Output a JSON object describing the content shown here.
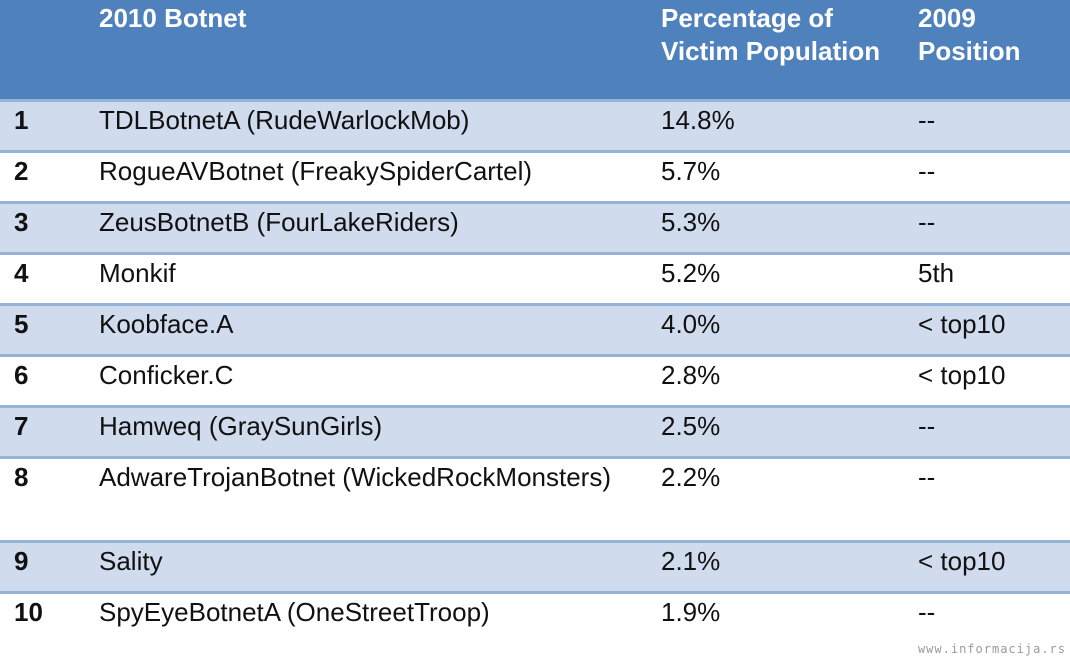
{
  "table": {
    "headers": [
      "",
      "2010 Botnet",
      "Percentage of Victim Population",
      "2009 Position"
    ],
    "rows": [
      {
        "rank": "1",
        "botnet": "TDLBotnetA (RudeWarlockMob)",
        "percentage": "14.8%",
        "position_2009": "--"
      },
      {
        "rank": "2",
        "botnet": "RogueAVBotnet (FreakySpiderCartel)",
        "percentage": "5.7%",
        "position_2009": "--"
      },
      {
        "rank": "3",
        "botnet": "ZeusBotnetB (FourLakeRiders)",
        "percentage": "5.3%",
        "position_2009": "--"
      },
      {
        "rank": "4",
        "botnet": "Monkif",
        "percentage": "5.2%",
        "position_2009": "5th"
      },
      {
        "rank": "5",
        "botnet": "Koobface.A",
        "percentage": "4.0%",
        "position_2009": "< top10"
      },
      {
        "rank": "6",
        "botnet": "Conficker.C",
        "percentage": "2.8%",
        "position_2009": "< top10"
      },
      {
        "rank": "7",
        "botnet": "Hamweq (GraySunGirls)",
        "percentage": "2.5%",
        "position_2009": "--"
      },
      {
        "rank": "8",
        "botnet": "AdwareTrojanBotnet (WickedRockMonsters)",
        "percentage": "2.2%",
        "position_2009": "--"
      },
      {
        "rank": "9",
        "botnet": "Sality",
        "percentage": "2.1%",
        "position_2009": "< top10"
      },
      {
        "rank": "10",
        "botnet": "SpyEyeBotnetA (OneStreetTroop)",
        "percentage": "1.9%",
        "position_2009": "--"
      }
    ]
  },
  "watermark": "www.informacija.rs",
  "colors": {
    "header_bg": "#4f81bd",
    "band": "#d0dbed",
    "divider": "#95b3d7"
  }
}
